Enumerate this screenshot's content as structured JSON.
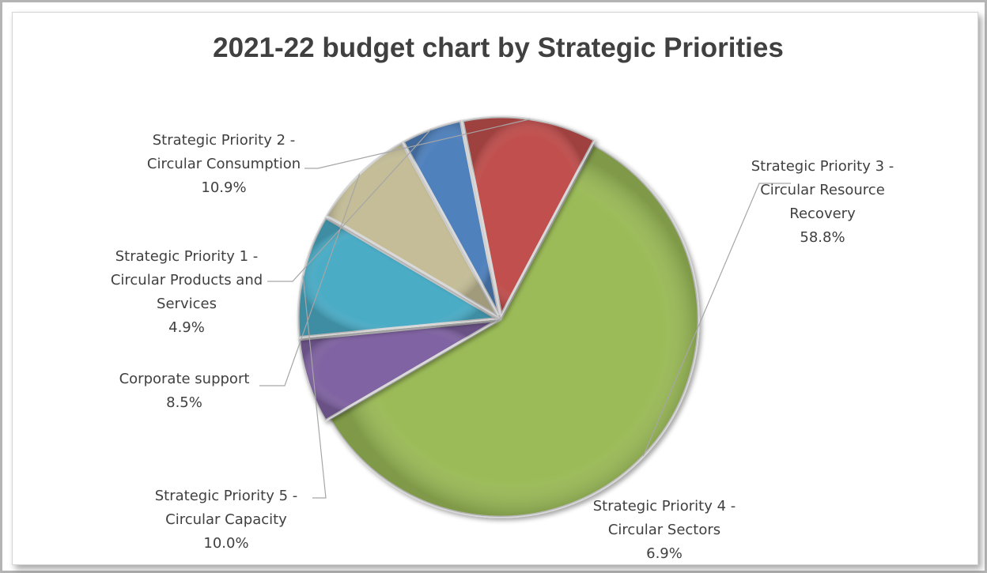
{
  "chart_data": {
    "type": "pie",
    "title": "2021-22 budget chart by Strategic Priorities",
    "slices": [
      {
        "lines": [
          "Strategic Priority 3 -",
          "Circular Resource",
          "Recovery"
        ],
        "value": 58.8,
        "value_label": "58.8%",
        "color": "#9bbb59"
      },
      {
        "lines": [
          "Strategic Priority 4 -",
          "Circular Sectors"
        ],
        "value": 6.9,
        "value_label": "6.9%",
        "color": "#8064a2"
      },
      {
        "lines": [
          "Strategic Priority 5 -",
          "Circular Capacity"
        ],
        "value": 10.0,
        "value_label": "10.0%",
        "color": "#4bacc6"
      },
      {
        "lines": [
          "Corporate support"
        ],
        "value": 8.5,
        "value_label": "8.5%",
        "color": "#c4bd97"
      },
      {
        "lines": [
          "Strategic Priority 1 -",
          "Circular Products and",
          "Services"
        ],
        "value": 4.9,
        "value_label": "4.9%",
        "color": "#4f81bd"
      },
      {
        "lines": [
          "Strategic Priority 2 -",
          "Circular Consumption"
        ],
        "value": 10.9,
        "value_label": "10.9%",
        "color": "#c0504d"
      }
    ],
    "legend": "none",
    "data_labels": "outside with leader lines"
  }
}
